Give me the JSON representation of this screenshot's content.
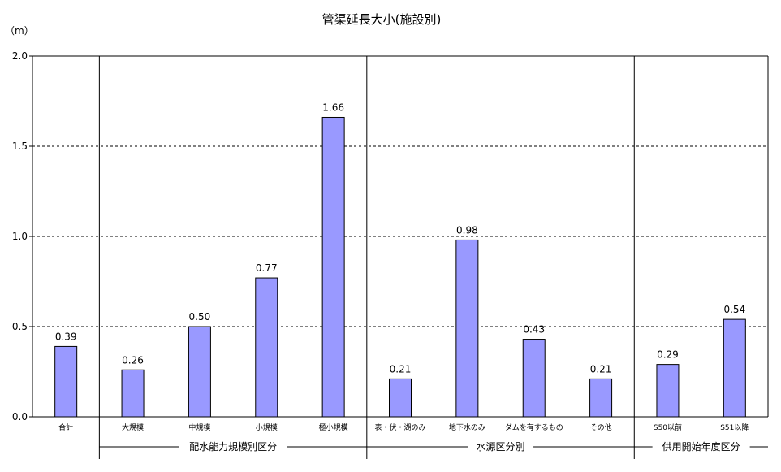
{
  "chart_data": {
    "type": "bar",
    "title": "管渠延長大小(施設別)",
    "ylabel": "（m）",
    "ylim": [
      0,
      2.0
    ],
    "yticks": [
      "0.0",
      "0.5",
      "1.0",
      "1.5",
      "2.0"
    ],
    "grid": true,
    "categories": [
      "合計",
      "大規模",
      "中規模",
      "小規模",
      "極小規模",
      "表・伏・湖のみ",
      "地下水のみ",
      "ダムを有するもの",
      "その他",
      "S50以前",
      "S51以降"
    ],
    "values": [
      0.39,
      0.26,
      0.5,
      0.77,
      1.66,
      0.21,
      0.98,
      0.43,
      0.21,
      0.29,
      0.54
    ],
    "data_labels": [
      "0.39",
      "0.26",
      "0.50",
      "0.77",
      "1.66",
      "0.21",
      "0.98",
      "0.43",
      "0.21",
      "0.29",
      "0.54"
    ],
    "groups": [
      {
        "label": "配水能力規模別区分",
        "start": 1,
        "end": 4
      },
      {
        "label": "水源区分別",
        "start": 5,
        "end": 8
      },
      {
        "label": "供用開始年度区分",
        "start": 9,
        "end": 10
      }
    ],
    "colors": {
      "bar": "#9999FF",
      "bar_stroke": "#000000",
      "grid": "#000000"
    }
  }
}
